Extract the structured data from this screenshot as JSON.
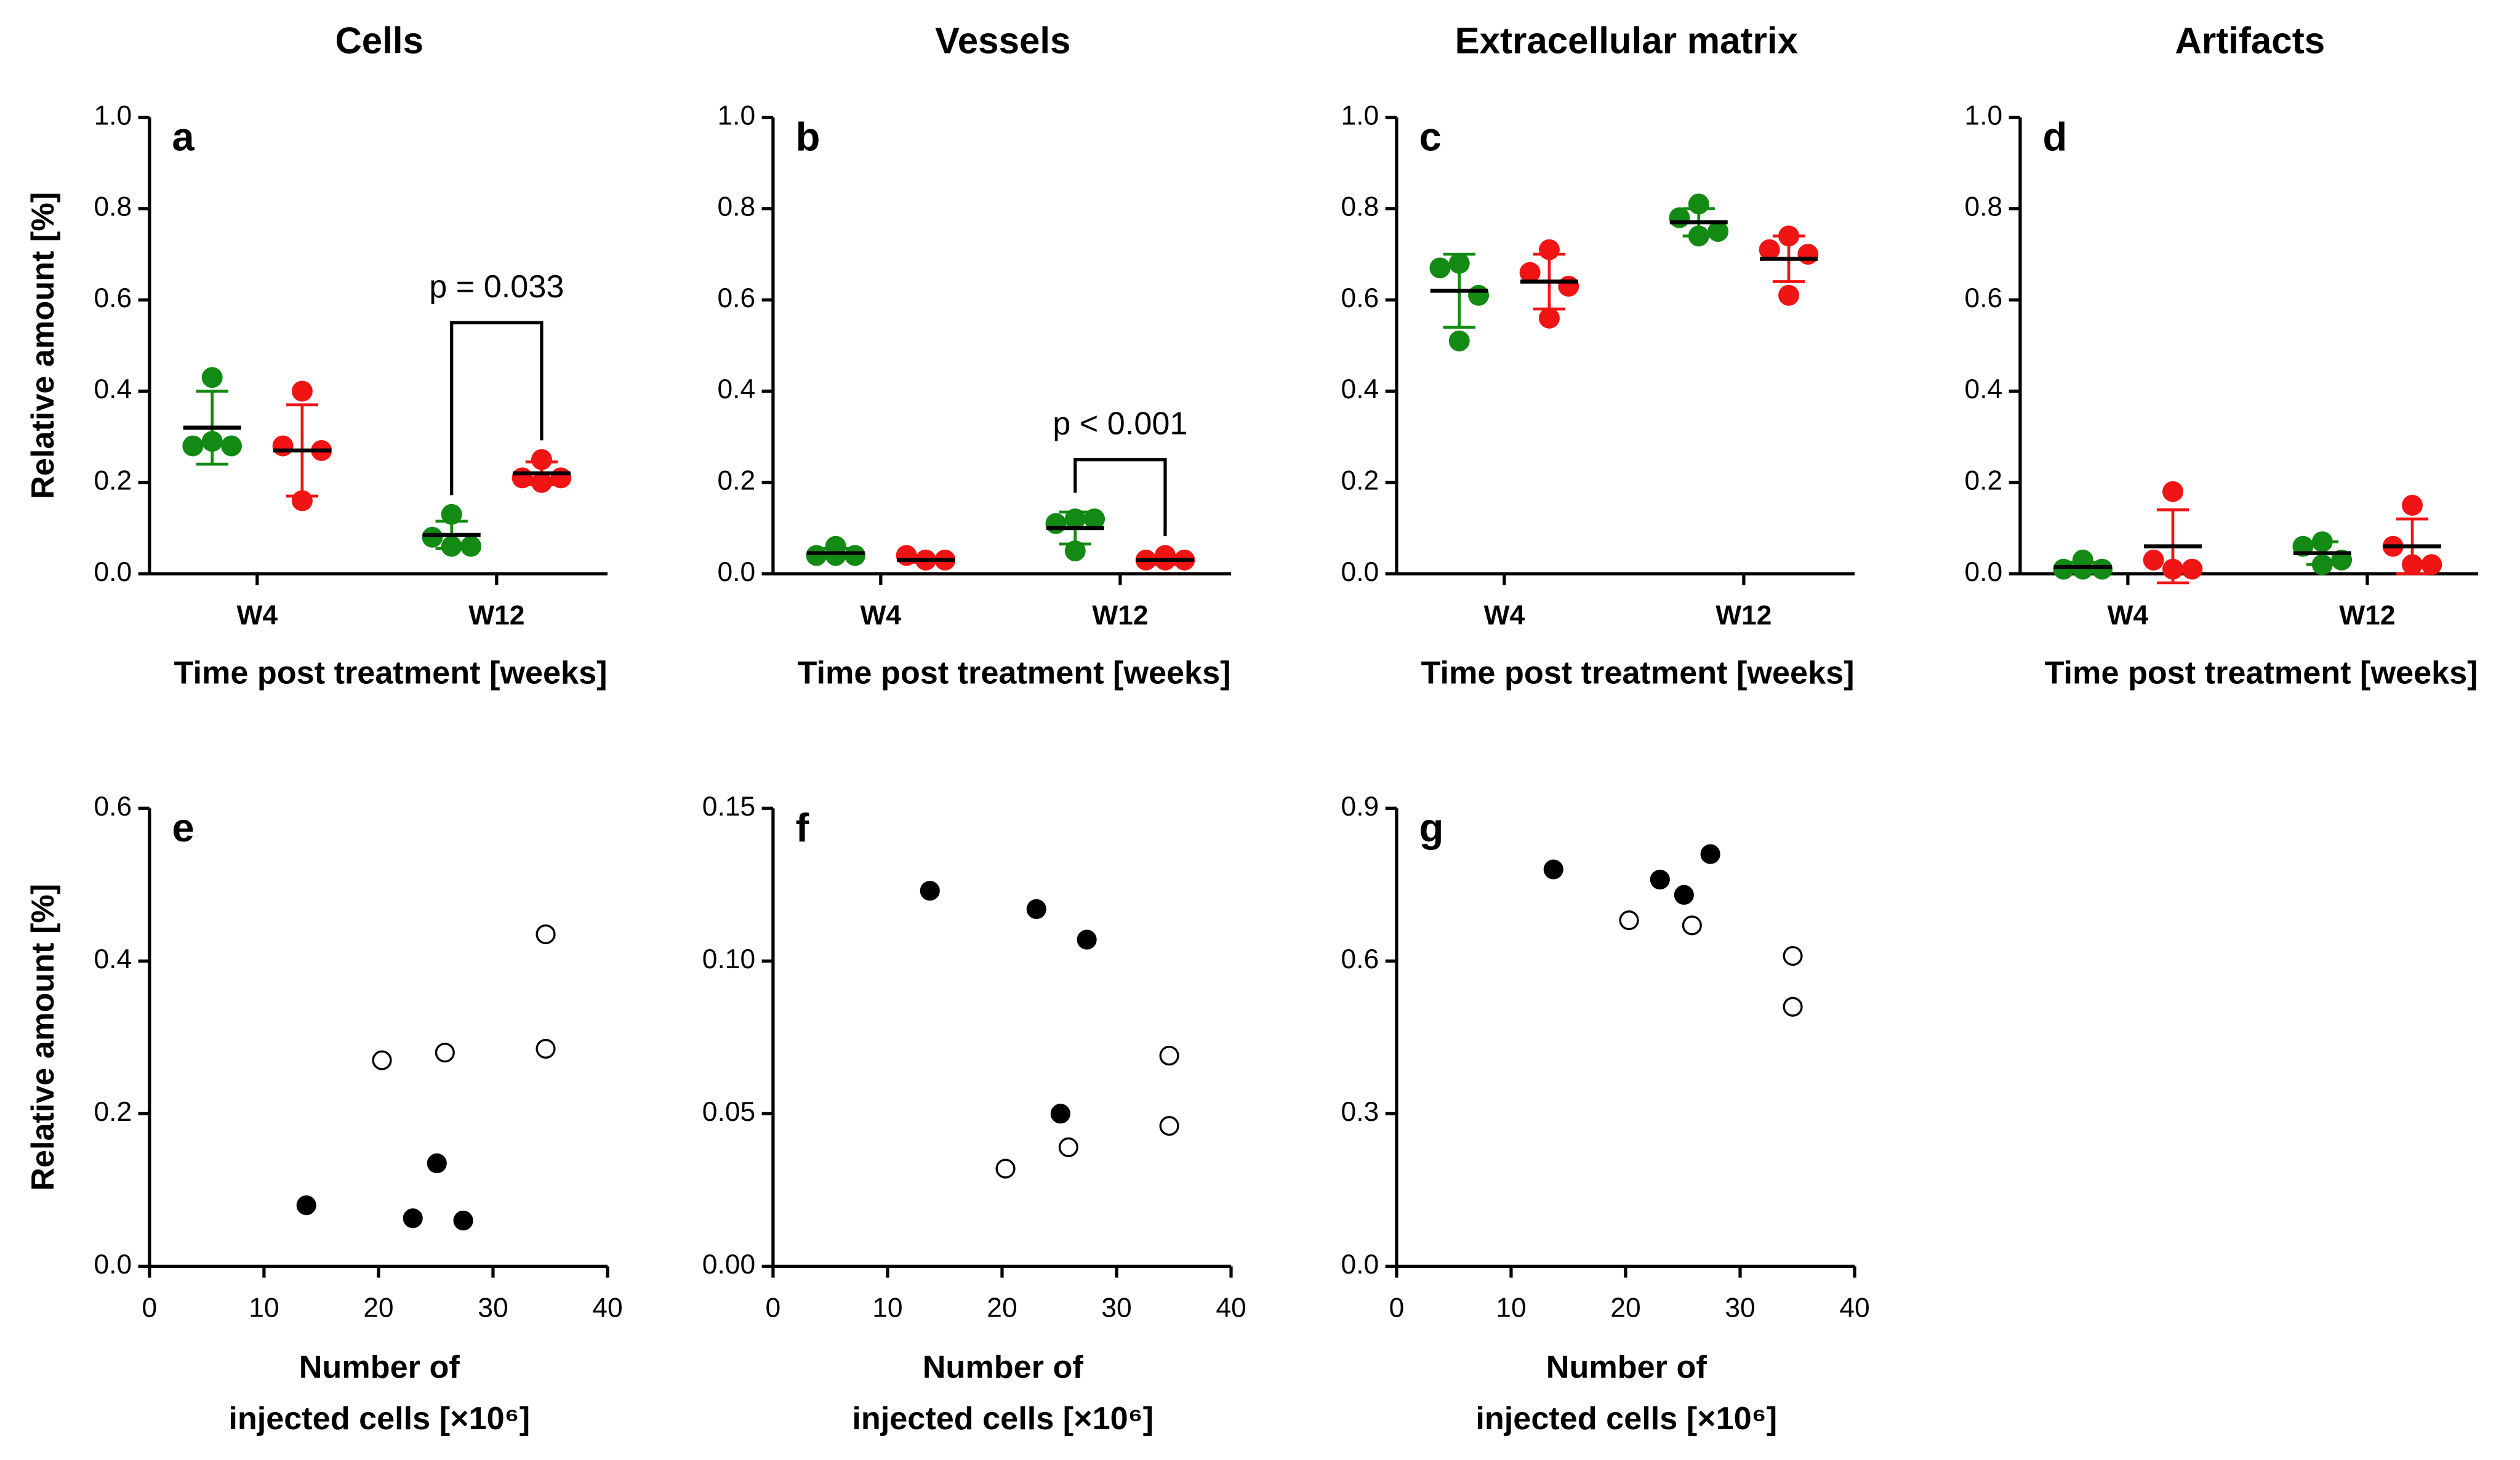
{
  "chart_data": [
    {
      "type": "dot",
      "title": "Cells",
      "panel": "a",
      "ylabel": "Relative amount [%]",
      "xlabel": "Time post treatment [weeks]",
      "categories": [
        "W4",
        "W12"
      ],
      "ylim": [
        0,
        1
      ],
      "yticks": [
        {
          "value": 0,
          "label": "0.0"
        },
        0.2,
        0.4,
        0.6,
        0.8,
        {
          "value": 1,
          "label": "1.0"
        }
      ],
      "series": [
        {
          "color": "#138a13",
          "values": [
            [
              0.43,
              0.28,
              0.28,
              0.29
            ],
            [
              0.13,
              0.08,
              0.06,
              0.06
            ]
          ],
          "mean": [
            0.32,
            0.085
          ],
          "sd": [
            0.08,
            0.03
          ]
        },
        {
          "color": "#f01414",
          "values": [
            [
              0.4,
              0.28,
              0.27,
              0.16
            ],
            [
              0.25,
              0.21,
              0.21,
              0.2
            ]
          ],
          "mean": [
            0.27,
            0.22
          ],
          "sd": [
            0.1,
            0.025
          ]
        }
      ],
      "annotations": [
        {
          "text": "p = 0.033",
          "category": 1,
          "y": 0.55
        }
      ]
    },
    {
      "type": "dot",
      "title": "Vessels",
      "panel": "b",
      "xlabel": "Time post treatment [weeks]",
      "categories": [
        "W4",
        "W12"
      ],
      "ylim": [
        0,
        1
      ],
      "yticks": [
        {
          "value": 0,
          "label": "0.0"
        },
        0.2,
        0.4,
        0.6,
        0.8,
        {
          "value": 1,
          "label": "1.0"
        }
      ],
      "series": [
        {
          "color": "#138a13",
          "values": [
            [
              0.06,
              0.04,
              0.04,
              0.04
            ],
            [
              0.12,
              0.11,
              0.12,
              0.05
            ]
          ],
          "mean": [
            0.045,
            0.1
          ],
          "sd": [
            0.01,
            0.035
          ]
        },
        {
          "color": "#f01414",
          "values": [
            [
              0.03,
              0.04,
              0.03,
              0.03
            ],
            [
              0.04,
              0.03,
              0.03,
              0.03
            ]
          ],
          "mean": [
            0.03,
            0.03
          ],
          "sd": [
            0.005,
            0.01
          ]
        }
      ],
      "annotations": [
        {
          "text": "p < 0.001",
          "category": 1,
          "y": 0.25
        }
      ]
    },
    {
      "type": "dot",
      "title": "Extracellular matrix",
      "panel": "c",
      "xlabel": "Time post treatment [weeks]",
      "categories": [
        "W4",
        "W12"
      ],
      "ylim": [
        0,
        1
      ],
      "yticks": [
        {
          "value": 0,
          "label": "0.0"
        },
        0.2,
        0.4,
        0.6,
        0.8,
        {
          "value": 1,
          "label": "1.0"
        }
      ],
      "series": [
        {
          "color": "#138a13",
          "values": [
            [
              0.68,
              0.67,
              0.61,
              0.51
            ],
            [
              0.81,
              0.78,
              0.75,
              0.74
            ]
          ],
          "mean": [
            0.62,
            0.77
          ],
          "sd": [
            0.08,
            0.03
          ]
        },
        {
          "color": "#f01414",
          "values": [
            [
              0.71,
              0.66,
              0.63,
              0.56
            ],
            [
              0.74,
              0.71,
              0.7,
              0.61
            ]
          ],
          "mean": [
            0.64,
            0.69
          ],
          "sd": [
            0.06,
            0.05
          ]
        }
      ]
    },
    {
      "type": "dot",
      "title": "Artifacts",
      "panel": "d",
      "xlabel": "Time post treatment [weeks]",
      "categories": [
        "W4",
        "W12"
      ],
      "ylim": [
        0,
        1
      ],
      "yticks": [
        {
          "value": 0,
          "label": "0.0"
        },
        0.2,
        0.4,
        0.6,
        0.8,
        {
          "value": 1,
          "label": "1.0"
        }
      ],
      "series": [
        {
          "color": "#138a13",
          "values": [
            [
              0.03,
              0.01,
              0.01,
              0.01
            ],
            [
              0.07,
              0.06,
              0.03,
              0.02
            ]
          ],
          "mean": [
            0.015,
            0.045
          ],
          "sd": [
            0.01,
            0.025
          ]
        },
        {
          "color": "#f01414",
          "values": [
            [
              0.18,
              0.03,
              0.01,
              0.01
            ],
            [
              0.15,
              0.06,
              0.02,
              0.02
            ]
          ],
          "mean": [
            0.06,
            0.06
          ],
          "sd": [
            0.08,
            0.06
          ]
        }
      ]
    },
    {
      "type": "scatter",
      "panel": "e",
      "ylabel": "Relative amount [%]",
      "xlabel": [
        "Number of",
        "injected cells [×10⁶]"
      ],
      "xlim": [
        0,
        40
      ],
      "xticks": [
        0,
        10,
        20,
        30,
        40
      ],
      "ylim": [
        0,
        0.6
      ],
      "yticks": [
        {
          "value": 0,
          "label": "0.0"
        },
        0.2,
        0.4,
        0.6
      ],
      "series": [
        {
          "color": "#000000",
          "filled": true,
          "x": [
            13.7,
            23,
            25.1,
            27.4
          ],
          "values": [
            0.08,
            0.063,
            0.135,
            0.06
          ]
        },
        {
          "color": "#000000",
          "filled": false,
          "x": [
            20.3,
            25.8,
            34.6,
            34.6
          ],
          "values": [
            0.27,
            0.28,
            0.435,
            0.285
          ]
        }
      ]
    },
    {
      "type": "scatter",
      "panel": "f",
      "xlabel": [
        "Number of",
        "injected cells [×10⁶]"
      ],
      "xlim": [
        0,
        40
      ],
      "xticks": [
        0,
        10,
        20,
        30,
        40
      ],
      "ylim": [
        0,
        0.15
      ],
      "yticks": [
        {
          "value": 0,
          "label": "0.00"
        },
        0.05,
        {
          "value": 0.1,
          "label": "0.10"
        },
        0.15
      ],
      "series": [
        {
          "color": "#000000",
          "filled": true,
          "x": [
            13.7,
            23,
            25.1,
            27.4
          ],
          "values": [
            0.123,
            0.117,
            0.05,
            0.107
          ]
        },
        {
          "color": "#000000",
          "filled": false,
          "x": [
            20.3,
            25.8,
            34.6,
            34.6
          ],
          "values": [
            0.032,
            0.039,
            0.069,
            0.046
          ]
        }
      ]
    },
    {
      "type": "scatter",
      "panel": "g",
      "xlabel": [
        "Number of",
        "injected cells [×10⁶]"
      ],
      "xlim": [
        0,
        40
      ],
      "xticks": [
        0,
        10,
        20,
        30,
        40
      ],
      "ylim": [
        0,
        0.9
      ],
      "yticks": [
        {
          "value": 0,
          "label": "0.0"
        },
        0.3,
        0.6,
        0.9
      ],
      "series": [
        {
          "color": "#000000",
          "filled": true,
          "x": [
            13.7,
            23,
            25.1,
            27.4
          ],
          "values": [
            0.78,
            0.76,
            0.73,
            0.81
          ]
        },
        {
          "color": "#000000",
          "filled": false,
          "x": [
            20.3,
            25.8,
            34.6,
            34.6
          ],
          "values": [
            0.68,
            0.67,
            0.61,
            0.51
          ]
        }
      ]
    }
  ]
}
